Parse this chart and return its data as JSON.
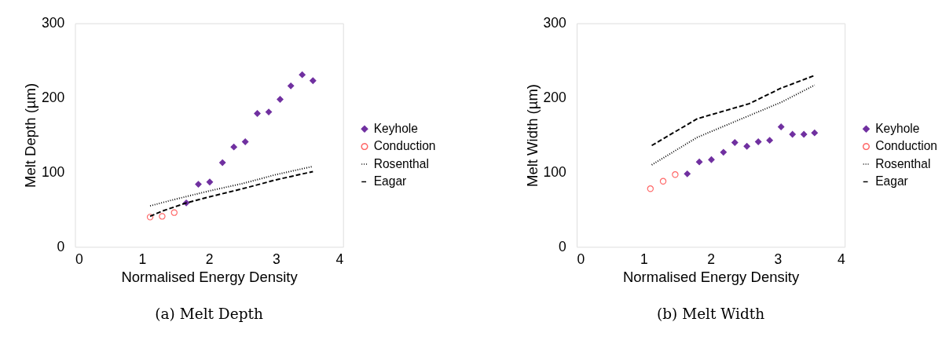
{
  "chart_data": [
    {
      "type": "scatter",
      "title": "(a) Melt Depth",
      "xlabel": "Normalised Energy Density",
      "ylabel": "Melt Depth (µm)",
      "xlim": [
        0,
        4
      ],
      "xticks": [
        0,
        1,
        2,
        3,
        4
      ],
      "ylim": [
        0,
        300
      ],
      "yticks": [
        0,
        100,
        200,
        300
      ],
      "grid": false,
      "legend": "right",
      "series": [
        {
          "name": "Keyhole",
          "type": "scatter",
          "marker": "diamond",
          "color": "#7030a0",
          "x": [
            1.66,
            1.84,
            2.01,
            2.2,
            2.37,
            2.54,
            2.72,
            2.89,
            3.06,
            3.22,
            3.39,
            3.55
          ],
          "values": [
            59,
            84,
            87,
            113,
            134,
            141,
            179,
            181,
            198,
            216,
            231,
            223
          ]
        },
        {
          "name": "Conduction",
          "type": "scatter",
          "marker": "circle",
          "color": "#ff6666",
          "x": [
            1.12,
            1.3,
            1.48
          ],
          "values": [
            40,
            41,
            46
          ]
        },
        {
          "name": "Rosenthal",
          "type": "line",
          "line_style": "dotted",
          "color": "#000000",
          "x": [
            1.12,
            1.5,
            2.0,
            2.5,
            3.0,
            3.55
          ],
          "values": [
            55,
            64,
            75,
            85,
            97,
            108
          ]
        },
        {
          "name": "Eagar",
          "type": "line",
          "line_style": "dashed",
          "color": "#000000",
          "x": [
            1.12,
            1.3,
            1.66,
            2.0,
            2.5,
            3.0,
            3.55
          ],
          "values": [
            41,
            48,
            59,
            67,
            78,
            90,
            101
          ]
        }
      ]
    },
    {
      "type": "scatter",
      "title": "(b) Melt Width",
      "xlabel": "Normalised Energy Density",
      "ylabel": "Melt Width (µm)",
      "xlim": [
        0,
        4
      ],
      "xticks": [
        0,
        1,
        2,
        3,
        4
      ],
      "ylim": [
        0,
        300
      ],
      "yticks": [
        0,
        100,
        200,
        300
      ],
      "grid": false,
      "legend": "right",
      "series": [
        {
          "name": "Keyhole",
          "type": "scatter",
          "marker": "diamond",
          "color": "#7030a0",
          "x": [
            1.65,
            1.83,
            2.01,
            2.19,
            2.36,
            2.54,
            2.71,
            2.88,
            3.05,
            3.22,
            3.39,
            3.55
          ],
          "values": [
            98,
            114,
            117,
            127,
            140,
            135,
            141,
            143,
            161,
            151,
            151,
            153
          ]
        },
        {
          "name": "Conduction",
          "type": "scatter",
          "marker": "circle",
          "color": "#ff6666",
          "x": [
            1.1,
            1.29,
            1.47
          ],
          "values": [
            78,
            88,
            97
          ]
        },
        {
          "name": "Rosenthal",
          "type": "line",
          "line_style": "dotted",
          "color": "#000000",
          "x": [
            1.12,
            1.8,
            2.57,
            3.05,
            3.55
          ],
          "values": [
            110,
            147,
            176,
            194,
            217
          ]
        },
        {
          "name": "Eagar",
          "type": "line",
          "line_style": "dashed",
          "color": "#000000",
          "x": [
            1.12,
            1.8,
            2.57,
            3.05,
            3.55
          ],
          "values": [
            136,
            172,
            192,
            213,
            230
          ]
        }
      ]
    }
  ]
}
